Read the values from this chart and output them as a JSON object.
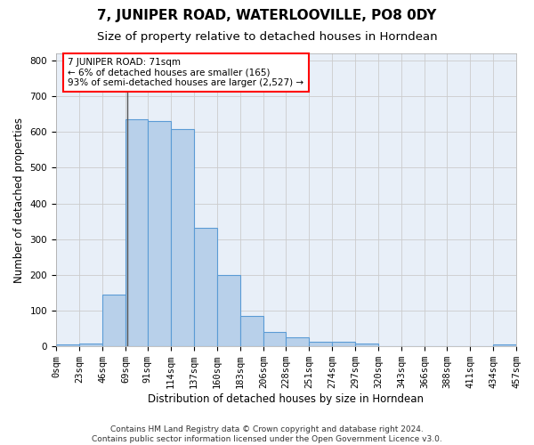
{
  "title": "7, JUNIPER ROAD, WATERLOOVILLE, PO8 0DY",
  "subtitle": "Size of property relative to detached houses in Horndean",
  "xlabel": "Distribution of detached houses by size in Horndean",
  "ylabel": "Number of detached properties",
  "bar_values": [
    6,
    9,
    145,
    636,
    630,
    608,
    332,
    200,
    85,
    40,
    25,
    12,
    12,
    9,
    0,
    0,
    0,
    0,
    0,
    5
  ],
  "bar_edges": [
    0,
    23,
    46,
    69,
    91,
    114,
    137,
    160,
    183,
    206,
    228,
    251,
    274,
    297,
    320,
    343,
    366,
    388,
    411,
    434,
    457
  ],
  "tick_labels": [
    "0sqm",
    "23sqm",
    "46sqm",
    "69sqm",
    "91sqm",
    "114sqm",
    "137sqm",
    "160sqm",
    "183sqm",
    "206sqm",
    "228sqm",
    "251sqm",
    "274sqm",
    "297sqm",
    "320sqm",
    "343sqm",
    "366sqm",
    "388sqm",
    "411sqm",
    "434sqm",
    "457sqm"
  ],
  "bar_color": "#b8d0ea",
  "bar_edge_color": "#5b9bd5",
  "vline_x": 71,
  "vline_color": "#555555",
  "annotation_line1": "7 JUNIPER ROAD: 71sqm",
  "annotation_line2": "← 6% of detached houses are smaller (165)",
  "annotation_line3": "93% of semi-detached houses are larger (2,527) →",
  "annotation_box_color": "white",
  "annotation_box_edge": "red",
  "ylim": [
    0,
    820
  ],
  "yticks": [
    0,
    100,
    200,
    300,
    400,
    500,
    600,
    700,
    800
  ],
  "grid_color": "#cccccc",
  "bg_color": "#e8eff8",
  "footer1": "Contains HM Land Registry data © Crown copyright and database right 2024.",
  "footer2": "Contains public sector information licensed under the Open Government Licence v3.0.",
  "title_fontsize": 11,
  "subtitle_fontsize": 9.5,
  "label_fontsize": 8.5,
  "tick_fontsize": 7.5,
  "annot_fontsize": 7.5,
  "footer_fontsize": 6.5
}
